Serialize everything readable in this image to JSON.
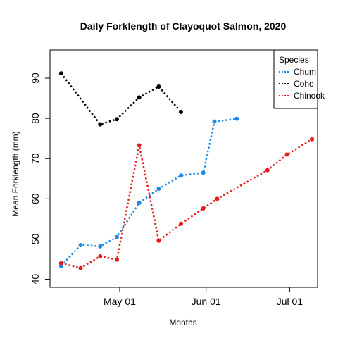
{
  "chart_data": {
    "type": "line",
    "title": "Daily Forklength of Clayoquot Salmon, 2020",
    "xlabel": "Months",
    "ylabel": "Mean Forklength (mm)",
    "x_type": "date",
    "xlim": [
      "2020-04-06",
      "2020-07-11"
    ],
    "ylim": [
      38,
      97
    ],
    "x_ticks": [
      {
        "date": "2020-05-01",
        "label": "May 01"
      },
      {
        "date": "2020-06-01",
        "label": "Jun 01"
      },
      {
        "date": "2020-07-01",
        "label": "Jul 01"
      }
    ],
    "y_ticks": [
      40,
      50,
      60,
      70,
      80,
      90
    ],
    "grid": false,
    "legend": {
      "title": "Species",
      "position": "top-right"
    },
    "series": [
      {
        "name": "Chum",
        "color": "#1E88E5",
        "line_style": "dotted",
        "points": [
          {
            "x": "2020-04-10",
            "y": 43.3
          },
          {
            "x": "2020-04-17",
            "y": 48.5
          },
          {
            "x": "2020-04-24",
            "y": 48.2
          },
          {
            "x": "2020-04-30",
            "y": 50.5
          },
          {
            "x": "2020-05-08",
            "y": 59.0
          },
          {
            "x": "2020-05-15",
            "y": 62.5
          },
          {
            "x": "2020-05-23",
            "y": 65.8
          },
          {
            "x": "2020-05-31",
            "y": 66.5
          },
          {
            "x": "2020-06-04",
            "y": 79.2
          },
          {
            "x": "2020-06-12",
            "y": 79.9
          }
        ]
      },
      {
        "name": "Coho",
        "color": "#000000",
        "line_style": "dotted",
        "points": [
          {
            "x": "2020-04-10",
            "y": 91.2
          },
          {
            "x": "2020-04-24",
            "y": 78.5
          },
          {
            "x": "2020-04-30",
            "y": 79.8
          },
          {
            "x": "2020-05-08",
            "y": 85.2
          },
          {
            "x": "2020-05-15",
            "y": 87.9
          },
          {
            "x": "2020-05-23",
            "y": 81.6
          }
        ]
      },
      {
        "name": "Chinook",
        "color": "#E41A1C",
        "line_style": "dotted",
        "points": [
          {
            "x": "2020-04-10",
            "y": 44.0
          },
          {
            "x": "2020-04-17",
            "y": 42.8
          },
          {
            "x": "2020-04-24",
            "y": 45.7
          },
          {
            "x": "2020-04-30",
            "y": 44.9
          },
          {
            "x": "2020-05-08",
            "y": 73.3
          },
          {
            "x": "2020-05-15",
            "y": 49.6
          },
          {
            "x": "2020-05-23",
            "y": 53.8
          },
          {
            "x": "2020-05-31",
            "y": 57.6
          },
          {
            "x": "2020-06-05",
            "y": 60.0
          },
          {
            "x": "2020-06-23",
            "y": 67.1
          },
          {
            "x": "2020-06-30",
            "y": 71.0
          },
          {
            "x": "2020-07-09",
            "y": 74.8
          }
        ]
      }
    ]
  }
}
